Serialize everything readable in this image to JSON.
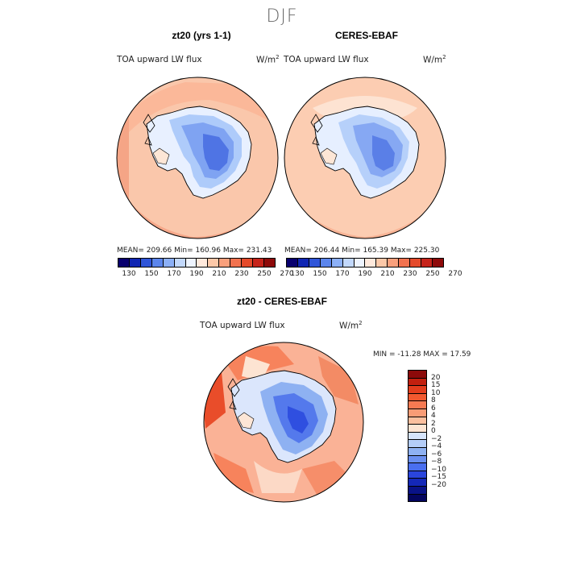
{
  "figure": {
    "season": "DJF",
    "panels": [
      {
        "title": "zt20 (yrs 1-1)",
        "variable": "TOA upward LW flux",
        "units_base": "W/m",
        "units_exp": "2",
        "stats": "MEAN= 209.66   Min= 160.96   Max= 231.43"
      },
      {
        "title": "CERES-EBAF",
        "variable": "TOA upward LW flux",
        "units_base": "W/m",
        "units_exp": "2",
        "stats": "MEAN= 206.44   Min= 165.39   Max= 225.30"
      },
      {
        "title": "zt20 - CERES-EBAF",
        "variable": "TOA upward LW flux",
        "units_base": "W/m",
        "units_exp": "2",
        "stats": "MIN = -11.28  MAX =  17.59"
      }
    ],
    "abs_colorbar": {
      "labels": [
        "130",
        "150",
        "170",
        "190",
        "210",
        "230",
        "250",
        "270"
      ],
      "colors": [
        "#08006e",
        "#1026b3",
        "#2f55d8",
        "#5b85ec",
        "#8cb0f7",
        "#c2d8fc",
        "#eef4ff",
        "#ffe9dc",
        "#fcc8a8",
        "#f9a07c",
        "#f2724f",
        "#e44a2b",
        "#c6241b",
        "#8e0a0a"
      ]
    },
    "diff_colorbar": {
      "labels": [
        "20",
        "15",
        "10",
        "8",
        "6",
        "4",
        "2",
        "0",
        "−2",
        "−4",
        "−6",
        "−8",
        "−10",
        "−15",
        "−20"
      ],
      "colors": [
        "#8c0a0a",
        "#c2200f",
        "#e33d1d",
        "#f2592f",
        "#f77a52",
        "#f99c76",
        "#fbbf9e",
        "#fde4d2",
        "#d6e4fb",
        "#b4cdf8",
        "#8eb1f2",
        "#6a8ff0",
        "#4a6ff0",
        "#2a45dd",
        "#1428b8",
        "#091286",
        "#04055e"
      ]
    }
  }
}
